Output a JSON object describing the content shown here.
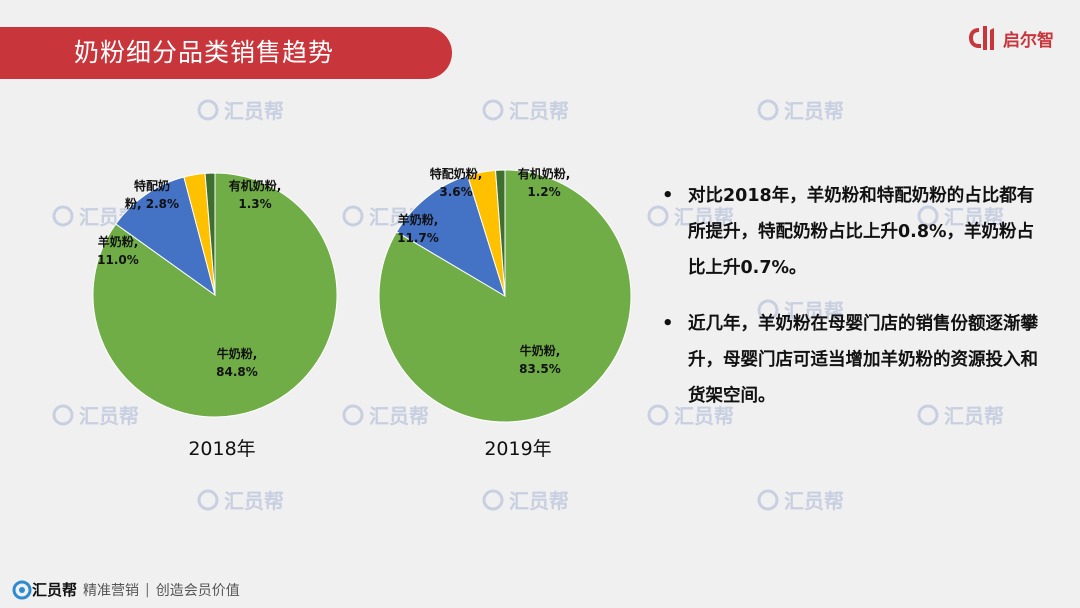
{
  "header": {
    "title": "奶粉细分品类销售趋势",
    "brand": "启尔智",
    "accent_color": "#c8353a"
  },
  "watermark_text": "汇员帮",
  "chart_data": [
    {
      "type": "pie",
      "title": "2018年",
      "slices": [
        {
          "name": "牛奶粉",
          "value": 84.8,
          "label_name": "牛奶粉,",
          "label_value": "84.8%",
          "color": "#70ad47"
        },
        {
          "name": "羊奶粉",
          "value": 11.0,
          "label_name": "羊奶粉,",
          "label_value": "11.0%",
          "color": "#4472c4"
        },
        {
          "name": "特配奶粉",
          "value": 2.8,
          "label_name": "特配奶",
          "label_value": "粉, 2.8%",
          "color": "#ffc000"
        },
        {
          "name": "有机奶粉",
          "value": 1.3,
          "label_name": "有机奶粉,",
          "label_value": "1.3%",
          "color": "#3f6f2e"
        }
      ]
    },
    {
      "type": "pie",
      "title": "2019年",
      "slices": [
        {
          "name": "牛奶粉",
          "value": 83.5,
          "label_name": "牛奶粉,",
          "label_value": "83.5%",
          "color": "#70ad47"
        },
        {
          "name": "羊奶粉",
          "value": 11.7,
          "label_name": "羊奶粉,",
          "label_value": "11.7%",
          "color": "#4472c4"
        },
        {
          "name": "特配奶粉",
          "value": 3.6,
          "label_name": "特配奶粉,",
          "label_value": "3.6%",
          "color": "#ffc000"
        },
        {
          "name": "有机奶粉",
          "value": 1.2,
          "label_name": "有机奶粉,",
          "label_value": "1.2%",
          "color": "#3f6f2e"
        }
      ]
    }
  ],
  "bullets": [
    "对比2018年，羊奶粉和特配奶粉的占比都有所提升，特配奶粉占比上升0.8%，羊奶粉占比上升0.7%。",
    "近几年，羊奶粉在母婴门店的销售份额逐渐攀升，母婴门店可适当增加羊奶粉的资源投入和货架空间。"
  ],
  "footer": {
    "logo_text": "汇员帮",
    "slogan_1": "精准营销",
    "slogan_2": "创造会员价值"
  }
}
